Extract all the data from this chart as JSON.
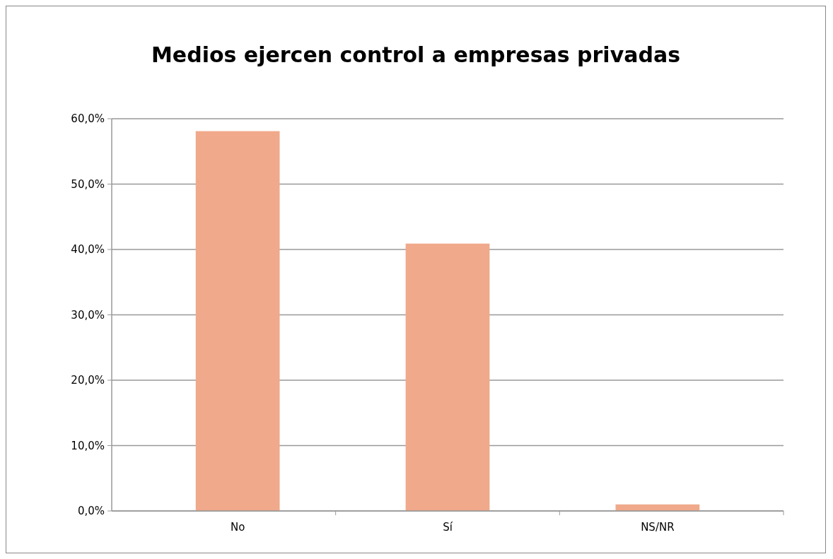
{
  "chart_data": {
    "type": "bar",
    "title": "Medios ejercen control a empresas privadas",
    "categories": [
      "No",
      "Sí",
      "NS/NR"
    ],
    "values": [
      58.1,
      40.9,
      1.0
    ],
    "color": "#f0a98a",
    "ylim": [
      0,
      60
    ],
    "yticks": [
      {
        "value": 0,
        "label": "0,0%"
      },
      {
        "value": 10,
        "label": "10,0%"
      },
      {
        "value": 20,
        "label": "20,0%"
      },
      {
        "value": 30,
        "label": "30,0%"
      },
      {
        "value": 40,
        "label": "40,0%"
      },
      {
        "value": 50,
        "label": "50,0%"
      },
      {
        "value": 60,
        "label": "60,0%"
      }
    ],
    "grid": "y"
  }
}
